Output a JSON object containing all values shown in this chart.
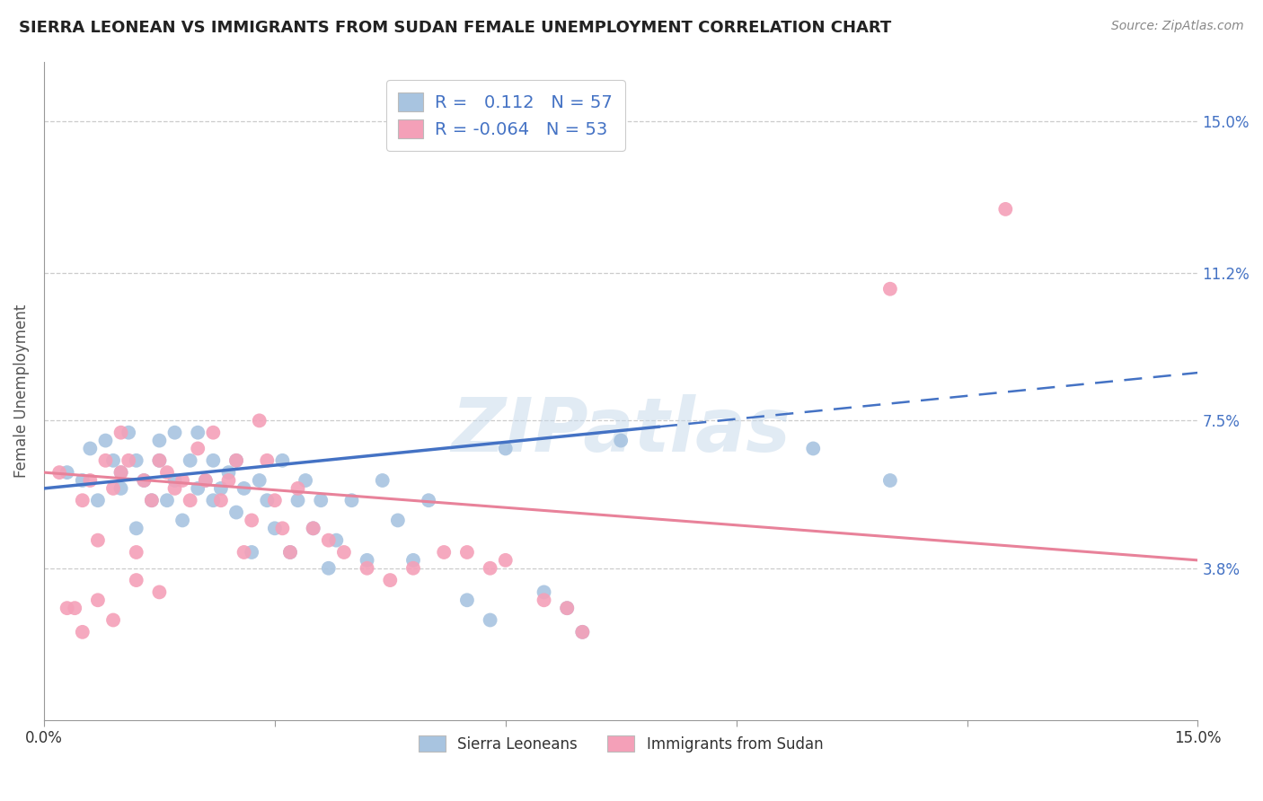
{
  "title": "SIERRA LEONEAN VS IMMIGRANTS FROM SUDAN FEMALE UNEMPLOYMENT CORRELATION CHART",
  "source": "Source: ZipAtlas.com",
  "ylabel": "Female Unemployment",
  "ytick_labels": [
    "15.0%",
    "11.2%",
    "7.5%",
    "3.8%"
  ],
  "ytick_values": [
    0.15,
    0.112,
    0.075,
    0.038
  ],
  "xlim": [
    0.0,
    0.15
  ],
  "ylim": [
    0.0,
    0.165
  ],
  "legend_blue_r": "0.112",
  "legend_blue_n": "57",
  "legend_pink_r": "-0.064",
  "legend_pink_n": "53",
  "legend_label_blue": "Sierra Leoneans",
  "legend_label_pink": "Immigrants from Sudan",
  "color_blue": "#a8c4e0",
  "color_pink": "#f4a0b8",
  "color_blue_line": "#4472c4",
  "color_pink_line": "#e8829a",
  "color_axis_right": "#4472c4",
  "watermark": "ZIPatlas",
  "blue_line_y0": 0.058,
  "blue_line_y1": 0.087,
  "pink_line_y0": 0.062,
  "pink_line_y1": 0.04,
  "blue_scatter_x": [
    0.003,
    0.005,
    0.006,
    0.007,
    0.008,
    0.009,
    0.01,
    0.01,
    0.011,
    0.012,
    0.012,
    0.013,
    0.014,
    0.015,
    0.015,
    0.016,
    0.017,
    0.017,
    0.018,
    0.019,
    0.02,
    0.02,
    0.021,
    0.022,
    0.022,
    0.023,
    0.024,
    0.025,
    0.025,
    0.026,
    0.027,
    0.028,
    0.029,
    0.03,
    0.031,
    0.032,
    0.033,
    0.034,
    0.035,
    0.036,
    0.037,
    0.038,
    0.04,
    0.042,
    0.044,
    0.046,
    0.048,
    0.05,
    0.055,
    0.058,
    0.06,
    0.065,
    0.068,
    0.07,
    0.075,
    0.1,
    0.11
  ],
  "blue_scatter_y": [
    0.062,
    0.06,
    0.068,
    0.055,
    0.07,
    0.065,
    0.062,
    0.058,
    0.072,
    0.065,
    0.048,
    0.06,
    0.055,
    0.065,
    0.07,
    0.055,
    0.06,
    0.072,
    0.05,
    0.065,
    0.058,
    0.072,
    0.06,
    0.065,
    0.055,
    0.058,
    0.062,
    0.052,
    0.065,
    0.058,
    0.042,
    0.06,
    0.055,
    0.048,
    0.065,
    0.042,
    0.055,
    0.06,
    0.048,
    0.055,
    0.038,
    0.045,
    0.055,
    0.04,
    0.06,
    0.05,
    0.04,
    0.055,
    0.03,
    0.025,
    0.068,
    0.032,
    0.028,
    0.022,
    0.07,
    0.068,
    0.06
  ],
  "pink_scatter_x": [
    0.002,
    0.004,
    0.005,
    0.006,
    0.007,
    0.008,
    0.009,
    0.01,
    0.01,
    0.011,
    0.012,
    0.013,
    0.014,
    0.015,
    0.016,
    0.017,
    0.018,
    0.019,
    0.02,
    0.021,
    0.022,
    0.023,
    0.024,
    0.025,
    0.026,
    0.027,
    0.028,
    0.029,
    0.03,
    0.031,
    0.032,
    0.033,
    0.035,
    0.037,
    0.039,
    0.042,
    0.045,
    0.048,
    0.052,
    0.055,
    0.058,
    0.06,
    0.065,
    0.068,
    0.07,
    0.003,
    0.005,
    0.007,
    0.009,
    0.012,
    0.015,
    0.11,
    0.125
  ],
  "pink_scatter_y": [
    0.062,
    0.028,
    0.055,
    0.06,
    0.045,
    0.065,
    0.058,
    0.062,
    0.072,
    0.065,
    0.042,
    0.06,
    0.055,
    0.065,
    0.062,
    0.058,
    0.06,
    0.055,
    0.068,
    0.06,
    0.072,
    0.055,
    0.06,
    0.065,
    0.042,
    0.05,
    0.075,
    0.065,
    0.055,
    0.048,
    0.042,
    0.058,
    0.048,
    0.045,
    0.042,
    0.038,
    0.035,
    0.038,
    0.042,
    0.042,
    0.038,
    0.04,
    0.03,
    0.028,
    0.022,
    0.028,
    0.022,
    0.03,
    0.025,
    0.035,
    0.032,
    0.108,
    0.128
  ]
}
